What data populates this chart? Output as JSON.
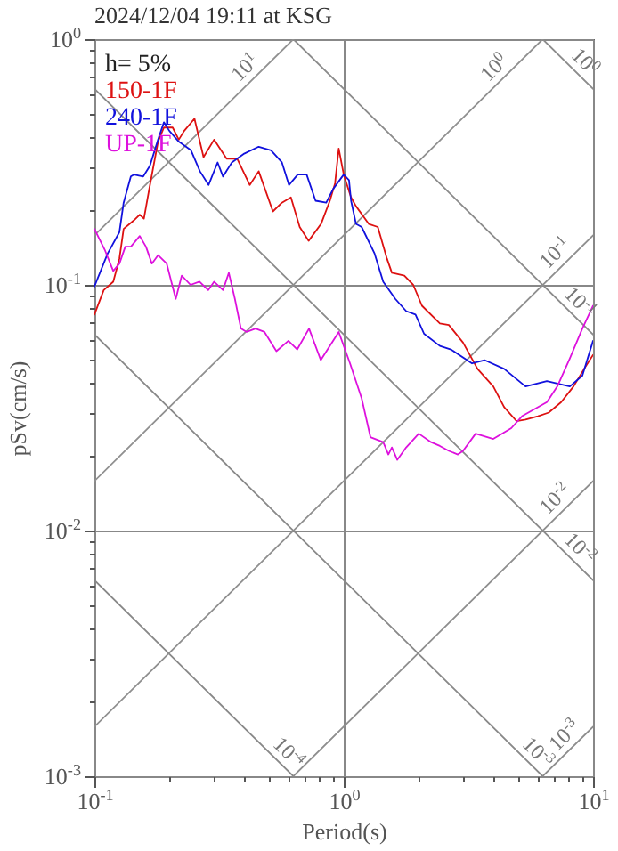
{
  "chart_data": {
    "type": "line",
    "title": "2024/12/04 19:11 at KSG",
    "xlabel": "Period(s)",
    "ylabel": "pSv(cm/s)",
    "log": "xy",
    "grid": true,
    "legend": "top left",
    "line_style": "solid",
    "marker": "none",
    "xlim": [
      0.1,
      10
    ],
    "ylim": [
      0.001,
      1
    ],
    "xticks": [
      {
        "value": 0.1,
        "label": "10$^{-1}$"
      },
      {
        "value": 0.2,
        "label": null
      },
      {
        "value": 0.3,
        "label": null
      },
      {
        "value": 0.4,
        "label": null
      },
      {
        "value": 0.5,
        "label": null
      },
      {
        "value": 0.6,
        "label": null
      },
      {
        "value": 0.7,
        "label": null
      },
      {
        "value": 0.8,
        "label": null
      },
      {
        "value": 0.9,
        "label": null
      },
      {
        "value": 1,
        "label": "10$^{0}$"
      },
      {
        "value": 2,
        "label": null
      },
      {
        "value": 3,
        "label": null
      },
      {
        "value": 4,
        "label": null
      },
      {
        "value": 5,
        "label": null
      },
      {
        "value": 6,
        "label": null
      },
      {
        "value": 7,
        "label": null
      },
      {
        "value": 8,
        "label": null
      },
      {
        "value": 9,
        "label": null
      },
      {
        "value": 10,
        "label": "10$^{1}$"
      }
    ],
    "yticks": [
      {
        "value": 0.001,
        "label": "10$^{-3}$"
      },
      {
        "value": 0.002,
        "label": null
      },
      {
        "value": 0.003,
        "label": null
      },
      {
        "value": 0.004,
        "label": null
      },
      {
        "value": 0.005,
        "label": null
      },
      {
        "value": 0.006,
        "label": null
      },
      {
        "value": 0.007,
        "label": null
      },
      {
        "value": 0.008,
        "label": null
      },
      {
        "value": 0.009,
        "label": null
      },
      {
        "value": 0.01,
        "label": "10$^{-2}$"
      },
      {
        "value": 0.02,
        "label": null
      },
      {
        "value": 0.03,
        "label": null
      },
      {
        "value": 0.04,
        "label": null
      },
      {
        "value": 0.05,
        "label": null
      },
      {
        "value": 0.06,
        "label": null
      },
      {
        "value": 0.07,
        "label": null
      },
      {
        "value": 0.08,
        "label": null
      },
      {
        "value": 0.09,
        "label": null
      },
      {
        "value": 0.1,
        "label": "10$^{-1}$"
      },
      {
        "value": 0.2,
        "label": null
      },
      {
        "value": 0.3,
        "label": null
      },
      {
        "value": 0.4,
        "label": null
      },
      {
        "value": 0.5,
        "label": null
      },
      {
        "value": 0.6,
        "label": null
      },
      {
        "value": 0.7,
        "label": null
      },
      {
        "value": 0.8,
        "label": null
      },
      {
        "value": 0.9,
        "label": null
      },
      {
        "value": 1,
        "label": "10$^{0}$"
      }
    ],
    "annotations": [
      "h= 5%",
      {
        "text": "10$^{1}$",
        "x": 0.44,
        "y": 0.7
      },
      {
        "text": "10$^{0}$",
        "x": 4.4,
        "y": 0.7
      },
      {
        "text": "10$^{0}$",
        "x": 8.5,
        "y": 0.739
      },
      {
        "text": "10$^{-1}$",
        "x": 7.7,
        "y": 0.123
      },
      {
        "text": "10$^{-1}$",
        "x": 8.1,
        "y": 0.0775
      },
      {
        "text": "10$^{-2}$",
        "x": 7.7,
        "y": 0.0123
      },
      {
        "text": "10$^{-2}$",
        "x": 8.1,
        "y": 0.00775
      },
      {
        "text": "10$^{-3}$",
        "x": 8.4,
        "y": 0.00134
      },
      {
        "text": "10$^{-3}$",
        "x": 5.5,
        "y": 0.00114
      },
      {
        "text": "10$^{-4}$",
        "x": 0.55,
        "y": 0.00114
      }
    ],
    "series": [
      {
        "type": "line",
        "color": "#888888",
        "x": [
          0.1,
          0.628
        ],
        "values": [
          0.00628,
          0.001
        ]
      },
      {
        "type": "line",
        "color": "#898989",
        "x": [
          0.1,
          6.28
        ],
        "values": [
          0.0628,
          0.001
        ]
      },
      {
        "type": "line",
        "color": "#8a8a8a",
        "x": [
          0.1,
          10
        ],
        "values": [
          0.628,
          0.00628
        ]
      },
      {
        "type": "line",
        "color": "#8b8b8b",
        "x": [
          0.628,
          10
        ],
        "values": [
          1,
          0.0628
        ]
      },
      {
        "type": "line",
        "color": "#8c8c8c",
        "x": [
          6.28,
          10
        ],
        "values": [
          1,
          0.628
        ]
      },
      {
        "type": "line",
        "color": "#8d8d8d",
        "x": [
          6.28,
          10
        ],
        "values": [
          0.001,
          0.00159
        ]
      },
      {
        "type": "line",
        "color": "#8e8e8e",
        "x": [
          0.628,
          10
        ],
        "values": [
          0.001,
          0.0159
        ]
      },
      {
        "type": "line",
        "color": "#8f8f8f",
        "x": [
          0.1,
          10
        ],
        "values": [
          0.00159,
          0.159
        ]
      },
      {
        "type": "line",
        "color": "#909090",
        "x": [
          0.1,
          6.28
        ],
        "values": [
          0.0159,
          1
        ]
      },
      {
        "type": "line",
        "color": "#919191",
        "x": [
          0.1,
          0.628
        ],
        "values": [
          0.159,
          1
        ]
      },
      {
        "name": "150-1F",
        "color": "#dd1111",
        "x": [
          0.1,
          0.109,
          0.119,
          0.126,
          0.131,
          0.144,
          0.152,
          0.158,
          0.165,
          0.18,
          0.19,
          0.206,
          0.218,
          0.229,
          0.252,
          0.274,
          0.302,
          0.339,
          0.374,
          0.42,
          0.456,
          0.52,
          0.565,
          0.614,
          0.666,
          0.723,
          0.811,
          0.88,
          0.923,
          0.955,
          1.0,
          1.07,
          1.12,
          1.26,
          1.37,
          1.49,
          1.56,
          1.75,
          1.9,
          2.06,
          2.43,
          2.64,
          3.01,
          3.44,
          3.98,
          4.4,
          4.93,
          5.36,
          6.01,
          6.64,
          7.45,
          8.35,
          9.21,
          10
        ],
        "values": [
          0.0757,
          0.0952,
          0.103,
          0.128,
          0.169,
          0.183,
          0.193,
          0.186,
          0.238,
          0.383,
          0.437,
          0.437,
          0.39,
          0.423,
          0.475,
          0.331,
          0.39,
          0.326,
          0.326,
          0.255,
          0.29,
          0.199,
          0.216,
          0.227,
          0.172,
          0.151,
          0.177,
          0.22,
          0.259,
          0.359,
          0.281,
          0.227,
          0.209,
          0.177,
          0.172,
          0.128,
          0.112,
          0.109,
          0.1,
          0.0822,
          0.0697,
          0.0686,
          0.0582,
          0.0455,
          0.0386,
          0.0318,
          0.0279,
          0.0283,
          0.0292,
          0.0302,
          0.0333,
          0.0386,
          0.0455,
          0.0519
        ]
      },
      {
        "name": "240-1F",
        "color": "#1111dd",
        "x": [
          0.1,
          0.113,
          0.126,
          0.131,
          0.14,
          0.144,
          0.157,
          0.167,
          0.18,
          0.19,
          0.2,
          0.218,
          0.244,
          0.265,
          0.287,
          0.312,
          0.328,
          0.356,
          0.399,
          0.456,
          0.511,
          0.565,
          0.603,
          0.654,
          0.71,
          0.771,
          0.851,
          0.908,
          1.0,
          1.05,
          1.07,
          1.12,
          1.18,
          1.33,
          1.44,
          1.61,
          1.78,
          1.94,
          2.1,
          2.43,
          2.69,
          3.27,
          3.67,
          4.4,
          5.36,
          6.53,
          8.07,
          9.06,
          10
        ],
        "values": [
          0.0984,
          0.134,
          0.164,
          0.216,
          0.276,
          0.281,
          0.276,
          0.305,
          0.39,
          0.459,
          0.423,
          0.383,
          0.353,
          0.29,
          0.255,
          0.315,
          0.276,
          0.315,
          0.342,
          0.365,
          0.353,
          0.315,
          0.255,
          0.281,
          0.281,
          0.22,
          0.216,
          0.246,
          0.281,
          0.267,
          0.22,
          0.177,
          0.172,
          0.134,
          0.103,
          0.0877,
          0.0782,
          0.0757,
          0.0632,
          0.0564,
          0.0546,
          0.0479,
          0.0494,
          0.0455,
          0.0386,
          0.0406,
          0.0386,
          0.0427,
          0.0592
        ]
      },
      {
        "name": "UP-1F",
        "color": "#dd11dd",
        "x": [
          0.1,
          0.11,
          0.119,
          0.126,
          0.133,
          0.14,
          0.152,
          0.161,
          0.17,
          0.18,
          0.195,
          0.212,
          0.224,
          0.243,
          0.264,
          0.286,
          0.302,
          0.328,
          0.346,
          0.366,
          0.387,
          0.408,
          0.443,
          0.481,
          0.537,
          0.6,
          0.651,
          0.726,
          0.809,
          0.955,
          1.06,
          1.18,
          1.28,
          1.44,
          1.51,
          1.56,
          1.64,
          1.78,
          2.0,
          2.24,
          2.43,
          2.64,
          2.87,
          3.01,
          3.38,
          3.98,
          4.7,
          5.19,
          6.53,
          7.19,
          8.07,
          9.06,
          10
        ],
        "values": [
          0.169,
          0.139,
          0.114,
          0.122,
          0.143,
          0.143,
          0.158,
          0.143,
          0.122,
          0.132,
          0.122,
          0.0877,
          0.109,
          0.1,
          0.103,
          0.0952,
          0.103,
          0.0952,
          0.112,
          0.0877,
          0.0664,
          0.0643,
          0.0664,
          0.0643,
          0.0537,
          0.0592,
          0.0546,
          0.0664,
          0.0494,
          0.0643,
          0.0479,
          0.0345,
          0.024,
          0.0229,
          0.0204,
          0.0218,
          0.0194,
          0.0218,
          0.0248,
          0.0229,
          0.0221,
          0.0211,
          0.0204,
          0.0211,
          0.0248,
          0.0236,
          0.0261,
          0.0292,
          0.0333,
          0.0386,
          0.0502,
          0.0664,
          0.0822
        ]
      }
    ]
  }
}
